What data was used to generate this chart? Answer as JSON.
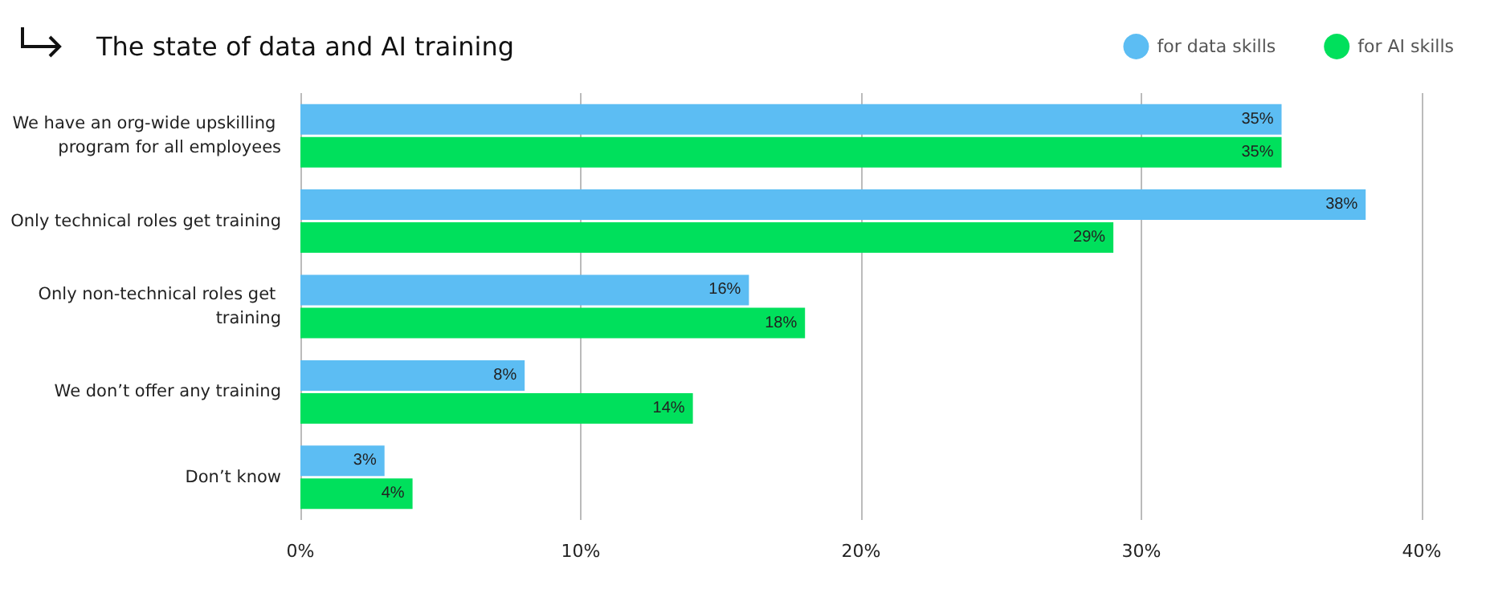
{
  "chart_data": {
    "type": "bar",
    "orientation": "horizontal",
    "title": "The state of data and AI training",
    "categories": [
      "We have an org-wide upskilling program for all employees",
      "Only technical roles get training",
      "Only non-technical roles get training",
      "We don’t offer any training",
      "Don’t know"
    ],
    "series": [
      {
        "name": "for data skills",
        "color": "#5cbdf3",
        "values": [
          35,
          38,
          16,
          8,
          3
        ],
        "value_labels": [
          "35%",
          "38%",
          "16%",
          "8%",
          "3%"
        ]
      },
      {
        "name": "for AI skills",
        "color": "#00e05c",
        "values": [
          35,
          29,
          18,
          14,
          4
        ],
        "value_labels": [
          "35%",
          "29%",
          "18%",
          "14%",
          "4%"
        ]
      }
    ],
    "xlim": [
      0,
      40
    ],
    "xticks": [
      {
        "value": 0,
        "label": "0%"
      },
      {
        "value": 10,
        "label": "10%"
      },
      {
        "value": 20,
        "label": "20%"
      },
      {
        "value": 30,
        "label": "30%"
      },
      {
        "value": 40,
        "label": "40%"
      }
    ],
    "grid": "x",
    "legend": "top right"
  }
}
